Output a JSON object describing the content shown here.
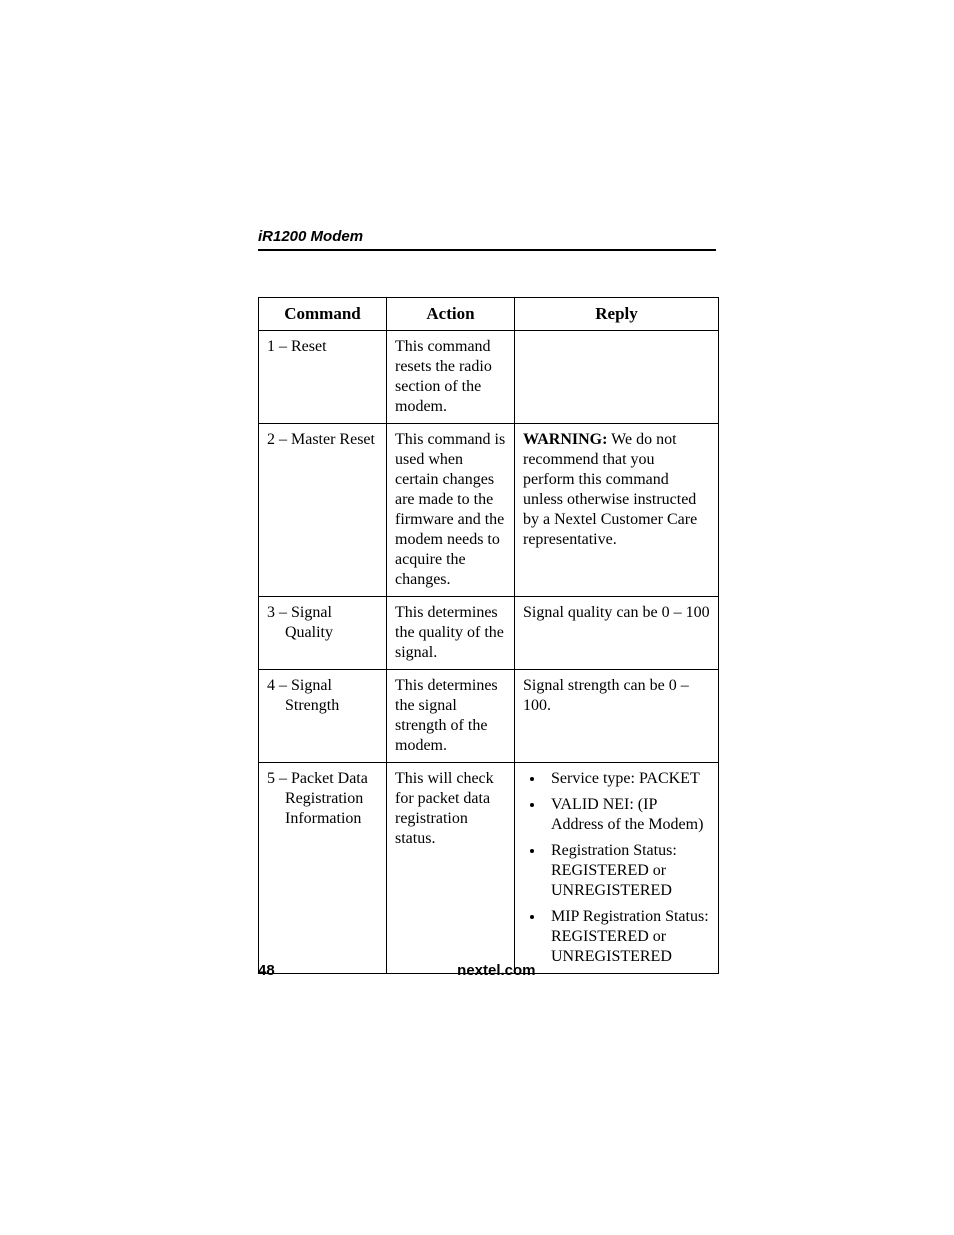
{
  "header": {
    "title": "iR1200 Modem"
  },
  "table": {
    "headers": {
      "command": "Command",
      "action": "Action",
      "reply": "Reply"
    },
    "rows": {
      "r1": {
        "command": "1 – Reset",
        "action": "This command resets the radio section of the modem.",
        "reply": ""
      },
      "r2": {
        "command": "2 – Master Reset",
        "action": "This command is used when certain changes are made to the firmware and the modem needs to acquire the changes.",
        "reply_bold": "WARNING:",
        "reply_rest": " We do not recommend that you perform this command unless otherwise instructed by a Nextel Customer Care representative."
      },
      "r3": {
        "command_line1": "3 – Signal",
        "command_line2": "Quality",
        "action": "This determines the quality of the signal.",
        "reply": "Signal quality can be 0 – 100"
      },
      "r4": {
        "command_line1": "4 – Signal",
        "command_line2": "Strength",
        "action": "This determines the signal strength of the modem.",
        "reply": "Signal strength can be 0 – 100."
      },
      "r5": {
        "command_line1": "5 – Packet Data",
        "command_line2": "Registration",
        "command_line3": "Information",
        "action": "This will check for packet data registration status.",
        "reply_items": {
          "i1": "Service type: PACKET",
          "i2": "VALID NEI: (IP Address of the Modem)",
          "i3": "Registration Status: REGISTERED or UNREGISTERED",
          "i4": "MIP Registration Status: REGISTERED or UNREGISTERED"
        }
      }
    }
  },
  "footer": {
    "page": "48",
    "site": "nextel.com"
  }
}
